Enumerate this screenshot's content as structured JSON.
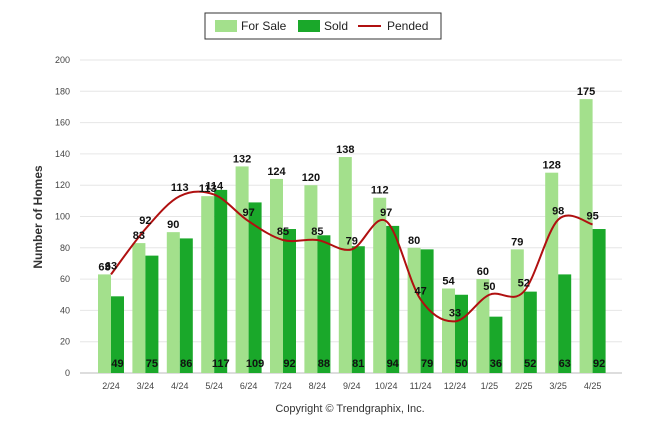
{
  "chart_data": {
    "type": "bar",
    "categories": [
      "2/24",
      "3/24",
      "4/24",
      "5/24",
      "6/24",
      "7/24",
      "8/24",
      "9/24",
      "10/24",
      "11/24",
      "12/24",
      "1/25",
      "2/25",
      "3/25",
      "4/25"
    ],
    "series": [
      {
        "name": "For Sale",
        "type": "bar",
        "color": "#a3e08c",
        "values": [
          63,
          83,
          90,
          113,
          132,
          124,
          120,
          138,
          112,
          80,
          54,
          60,
          79,
          128,
          175
        ]
      },
      {
        "name": "Sold",
        "type": "bar",
        "color": "#1aa82a",
        "values": [
          49,
          75,
          86,
          117,
          109,
          92,
          88,
          81,
          94,
          79,
          50,
          36,
          52,
          63,
          92
        ]
      },
      {
        "name": "Pended",
        "type": "line",
        "color": "#b01010",
        "values": [
          63,
          92,
          113,
          114,
          97,
          85,
          85,
          79,
          97,
          47,
          33,
          50,
          52,
          98,
          95
        ]
      }
    ],
    "ylabel": "Number of Homes",
    "ylim": [
      0,
      200
    ],
    "yticks": [
      0,
      20,
      40,
      60,
      80,
      100,
      120,
      140,
      160,
      180,
      200
    ],
    "grid": true,
    "legend_position": "top-center"
  },
  "credit": "Copyright © Trendgraphix, Inc."
}
